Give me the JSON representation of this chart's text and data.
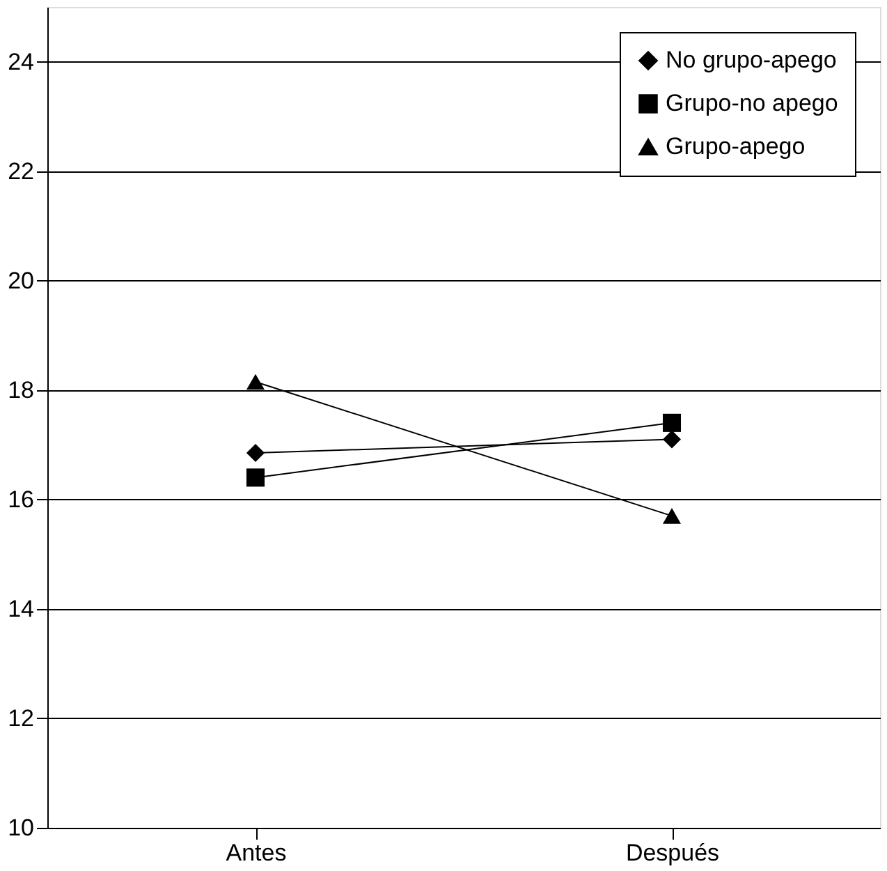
{
  "chart_data": {
    "type": "line",
    "categories": [
      "Antes",
      "Después"
    ],
    "series": [
      {
        "name": "No grupo-apego",
        "color": "#000000",
        "marker": "diamond",
        "values": [
          16.85,
          17.1
        ]
      },
      {
        "name": "Grupo-no apego",
        "color": "#000000",
        "marker": "square",
        "values": [
          16.4,
          17.4
        ]
      },
      {
        "name": "Grupo-apego",
        "color": "#000000",
        "marker": "triangle",
        "values": [
          18.15,
          15.7
        ]
      }
    ],
    "ylim": [
      10,
      25
    ],
    "yticks": [
      10,
      12,
      14,
      16,
      18,
      20,
      22,
      24
    ],
    "grid": "y",
    "legend": "top right",
    "line_style": "solid"
  }
}
